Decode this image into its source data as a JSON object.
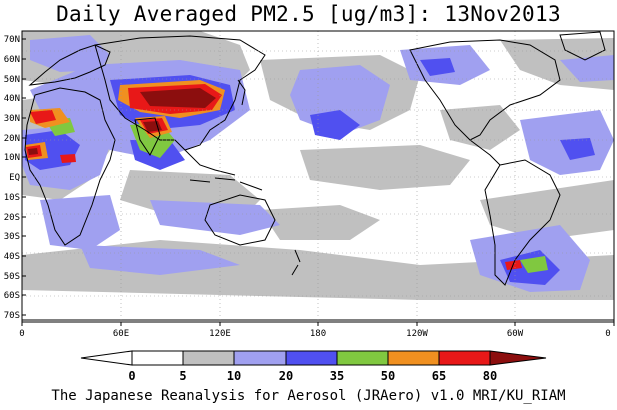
{
  "title": "Daily Averaged PM2.5 [ug/m3]: 13Nov2013",
  "footer": "The Japanese Reanalysis for Aerosol (JRAero) v1.0 MRI/KU_RIAM",
  "map": {
    "lat_labels": [
      "70N",
      "60N",
      "50N",
      "40N",
      "30N",
      "20N",
      "10N",
      "EQ",
      "10S",
      "20S",
      "30S",
      "40S",
      "50S",
      "60S",
      "70S"
    ],
    "lon_labels": [
      "0",
      "60E",
      "120E",
      "180",
      "120W",
      "60W",
      "0"
    ]
  },
  "colorbar": {
    "levels": [
      "0",
      "5",
      "10",
      "20",
      "35",
      "50",
      "65",
      "80"
    ],
    "colors": [
      "#ffffff",
      "#c0c0c0",
      "#a0a0f0",
      "#5050f0",
      "#80c840",
      "#f09020",
      "#e81818",
      "#8c0e0e"
    ]
  },
  "colors": {
    "light_gray": "#c0c0c0",
    "light_blue": "#a0a0f0",
    "blue": "#5050f0",
    "green": "#80c840",
    "orange": "#f09020",
    "red": "#e81818",
    "dark_red": "#8c0e0e"
  }
}
